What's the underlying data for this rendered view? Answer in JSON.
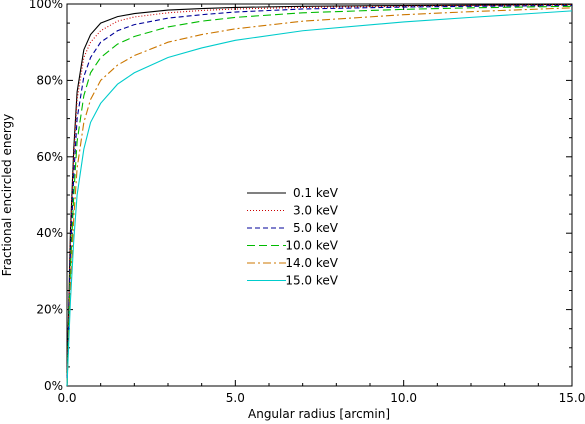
{
  "chart_data": {
    "type": "line",
    "title": "",
    "xlabel": "Angular radius [arcmin]",
    "ylabel": "Fractional encircled energy",
    "xlim": [
      0,
      15
    ],
    "ylim": [
      0,
      100
    ],
    "grid": false,
    "legend_position": "center",
    "x_ticks": [
      "0.0",
      "5.0",
      "10.0",
      "15.0"
    ],
    "y_ticks": [
      "0%",
      "20%",
      "40%",
      "60%",
      "80%",
      "100%"
    ],
    "series": [
      {
        "name": "0.1 keV",
        "color": "#000000",
        "dash": "solid",
        "x": [
          0.0,
          0.1,
          0.2,
          0.3,
          0.5,
          0.7,
          1.0,
          1.5,
          2.0,
          3.0,
          4.0,
          5.0,
          7.0,
          10.0,
          12.0,
          15.0
        ],
        "y": [
          0,
          40,
          62,
          77,
          88,
          92,
          95,
          96.7,
          97.5,
          98.4,
          98.8,
          99.1,
          99.4,
          99.6,
          99.7,
          99.9
        ]
      },
      {
        "name": "3.0 keV",
        "color": "#cc0000",
        "dash": "dot",
        "x": [
          0.0,
          0.1,
          0.2,
          0.3,
          0.5,
          0.7,
          1.0,
          1.5,
          2.0,
          3.0,
          4.0,
          5.0,
          7.0,
          10.0,
          12.0,
          15.0
        ],
        "y": [
          0,
          38,
          60,
          75,
          86,
          90,
          93,
          95.5,
          96.6,
          97.7,
          98.3,
          98.7,
          99.1,
          99.4,
          99.6,
          99.8
        ]
      },
      {
        "name": "5.0 keV",
        "color": "#000099",
        "dash": "dash",
        "x": [
          0.0,
          0.1,
          0.2,
          0.3,
          0.5,
          0.7,
          1.0,
          1.5,
          2.0,
          3.0,
          4.0,
          5.0,
          7.0,
          10.0,
          12.0,
          15.0
        ],
        "y": [
          0,
          34,
          55,
          70,
          81,
          86,
          90,
          93,
          94.6,
          96.3,
          97.2,
          97.9,
          98.7,
          99.2,
          99.4,
          99.6
        ]
      },
      {
        "name": "10.0 keV",
        "color": "#00bb00",
        "dash": "longdash",
        "x": [
          0.0,
          0.1,
          0.2,
          0.3,
          0.5,
          0.7,
          1.0,
          1.5,
          2.0,
          3.0,
          4.0,
          5.0,
          7.0,
          10.0,
          12.0,
          15.0
        ],
        "y": [
          0,
          30,
          50,
          64,
          76,
          82,
          86,
          89.5,
          91.5,
          94,
          95.5,
          96.5,
          97.7,
          98.6,
          99,
          99.4
        ]
      },
      {
        "name": "14.0 keV",
        "color": "#cc7700",
        "dash": "dashdot",
        "x": [
          0.0,
          0.1,
          0.2,
          0.3,
          0.5,
          0.7,
          1.0,
          1.5,
          2.0,
          3.0,
          4.0,
          5.0,
          7.0,
          10.0,
          12.0,
          15.0
        ],
        "y": [
          0,
          26,
          44,
          57,
          69,
          75,
          80,
          84,
          86.5,
          90,
          92,
          93.5,
          95.5,
          97.2,
          98,
          99
        ]
      },
      {
        "name": "15.0 keV",
        "color": "#00cccc",
        "dash": "solid",
        "x": [
          0.0,
          0.1,
          0.2,
          0.3,
          0.5,
          0.7,
          1.0,
          1.5,
          2.0,
          3.0,
          4.0,
          5.0,
          7.0,
          10.0,
          12.0,
          15.0
        ],
        "y": [
          0,
          22,
          38,
          50,
          62,
          69,
          74,
          79,
          82,
          86,
          88.5,
          90.5,
          93,
          95.3,
          96.5,
          98.2
        ]
      }
    ]
  }
}
